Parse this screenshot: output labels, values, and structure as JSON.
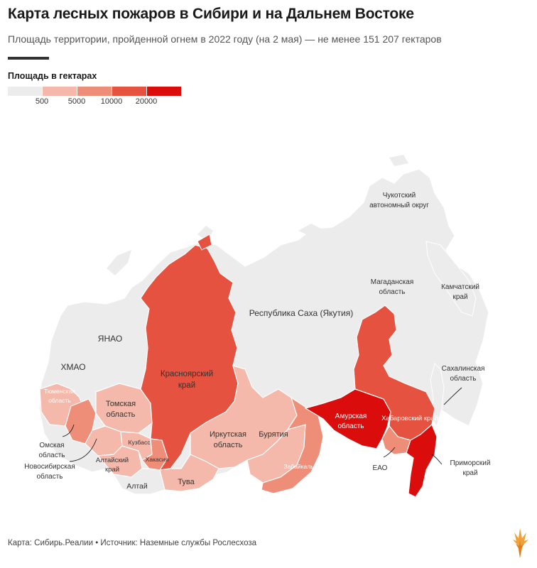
{
  "title": "Карта лесных пожаров в Сибири и на Дальнем Востоке",
  "subtitle": "Площадь территории, пройденной огнем в 2022 году (на 2 мая) — не менее 151 207 гектаров",
  "legend": {
    "title": "Площадь в гектарах",
    "thresholds": [
      "500",
      "5000",
      "10000",
      "20000"
    ],
    "colors": [
      "#ececec",
      "#f4b9aa",
      "#ee8d78",
      "#e5523f",
      "#db0c0c"
    ]
  },
  "regions": {
    "chukotka": {
      "l1": "Чукотский",
      "l2": "автономный округ"
    },
    "magadan": {
      "l1": "Магаданская",
      "l2": "область"
    },
    "kamchatka": {
      "l1": "Камчатский",
      "l2": "край"
    },
    "sakha": "Республика Саха (Якутия)",
    "yanao": "ЯНАО",
    "hmao": "ХМАО",
    "krasnoyarsk": {
      "l1": "Красноярский",
      "l2": "край"
    },
    "sakhalin": {
      "l1": "Сахалинская",
      "l2": "область"
    },
    "tyumen": {
      "l1": "Тюменская",
      "l2": "область"
    },
    "tomsk": {
      "l1": "Томская",
      "l2": "область"
    },
    "irkutsk": {
      "l1": "Иркутская",
      "l2": "область"
    },
    "buryatia": "Бурятия",
    "amur": {
      "l1": "Амурская",
      "l2": "область"
    },
    "khabarovsk": "Хабаровский край",
    "kuzbass": "Кузбасс",
    "omsk": {
      "l1": "Омская",
      "l2": "область"
    },
    "novosibirsk": {
      "l1": "Новосибирская",
      "l2": "область"
    },
    "altai_krai": {
      "l1": "Алтайский",
      "l2": "край"
    },
    "khakassia": "Хакасия",
    "zabaikalye": "Забайкалье",
    "eao": "ЕАО",
    "primorye": {
      "l1": "Приморский",
      "l2": "край"
    },
    "tuva": "Тува",
    "altai": "Алтай"
  },
  "footer": "Карта: Сибирь.Реалии • Источник: Наземные службы Рослесхоза",
  "logo_icon": "radio-liberty-flame-logo"
}
